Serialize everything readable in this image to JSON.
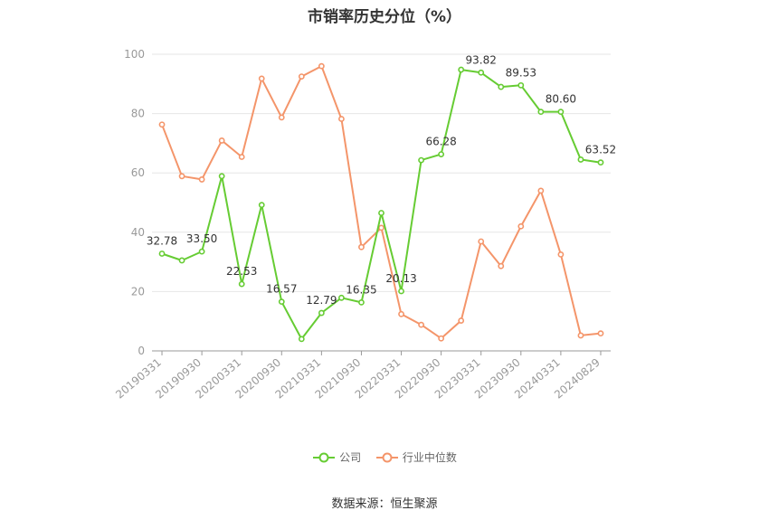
{
  "chart_data": {
    "type": "line",
    "title": "市销率历史分位（%）",
    "x": [
      "20190331",
      "20190630",
      "20190930",
      "20191231",
      "20200331",
      "20200630",
      "20200930",
      "20201231",
      "20210331",
      "20210630",
      "20210930",
      "20211231",
      "20220331",
      "20220630",
      "20220930",
      "20221231",
      "20230331",
      "20230630",
      "20230930",
      "20231231",
      "20240331",
      "20240630",
      "20240829"
    ],
    "x_tick_labels": [
      "20190331",
      "20190930",
      "20200331",
      "20200930",
      "20210331",
      "20210930",
      "20220331",
      "20220930",
      "20230331",
      "20230930",
      "20240331",
      "20240829"
    ],
    "ylim": [
      0,
      100
    ],
    "y_ticks": [
      "0",
      "20",
      "40",
      "60",
      "80",
      "100"
    ],
    "grid": true,
    "legend_position": "bottom",
    "series": [
      {
        "name": "公司",
        "color": "#66cc33",
        "values": [
          32.78,
          30.5,
          33.5,
          58.9,
          22.53,
          49.2,
          16.57,
          4.0,
          12.79,
          17.9,
          16.35,
          46.5,
          20.13,
          64.3,
          66.28,
          94.8,
          93.82,
          89.0,
          89.53,
          80.6,
          80.6,
          64.5,
          63.52
        ],
        "labels": [
          "32.78",
          "",
          "33.50",
          "",
          "22.53",
          "",
          "16.57",
          "",
          "12.79",
          "",
          "16.35",
          "",
          "20.13",
          "",
          "66.28",
          "",
          "93.82",
          "",
          "89.53",
          "",
          "80.60",
          "",
          "63.52"
        ]
      },
      {
        "name": "行业中位数",
        "color": "#f4956a",
        "values": [
          76.3,
          58.9,
          57.8,
          70.9,
          65.4,
          91.8,
          78.7,
          92.5,
          96.0,
          78.2,
          35.0,
          41.5,
          12.4,
          8.8,
          4.2,
          10.2,
          36.9,
          28.6,
          42.0,
          54.0,
          32.5,
          5.2,
          5.9
        ]
      }
    ]
  },
  "source_text": "数据来源：恒生聚源"
}
